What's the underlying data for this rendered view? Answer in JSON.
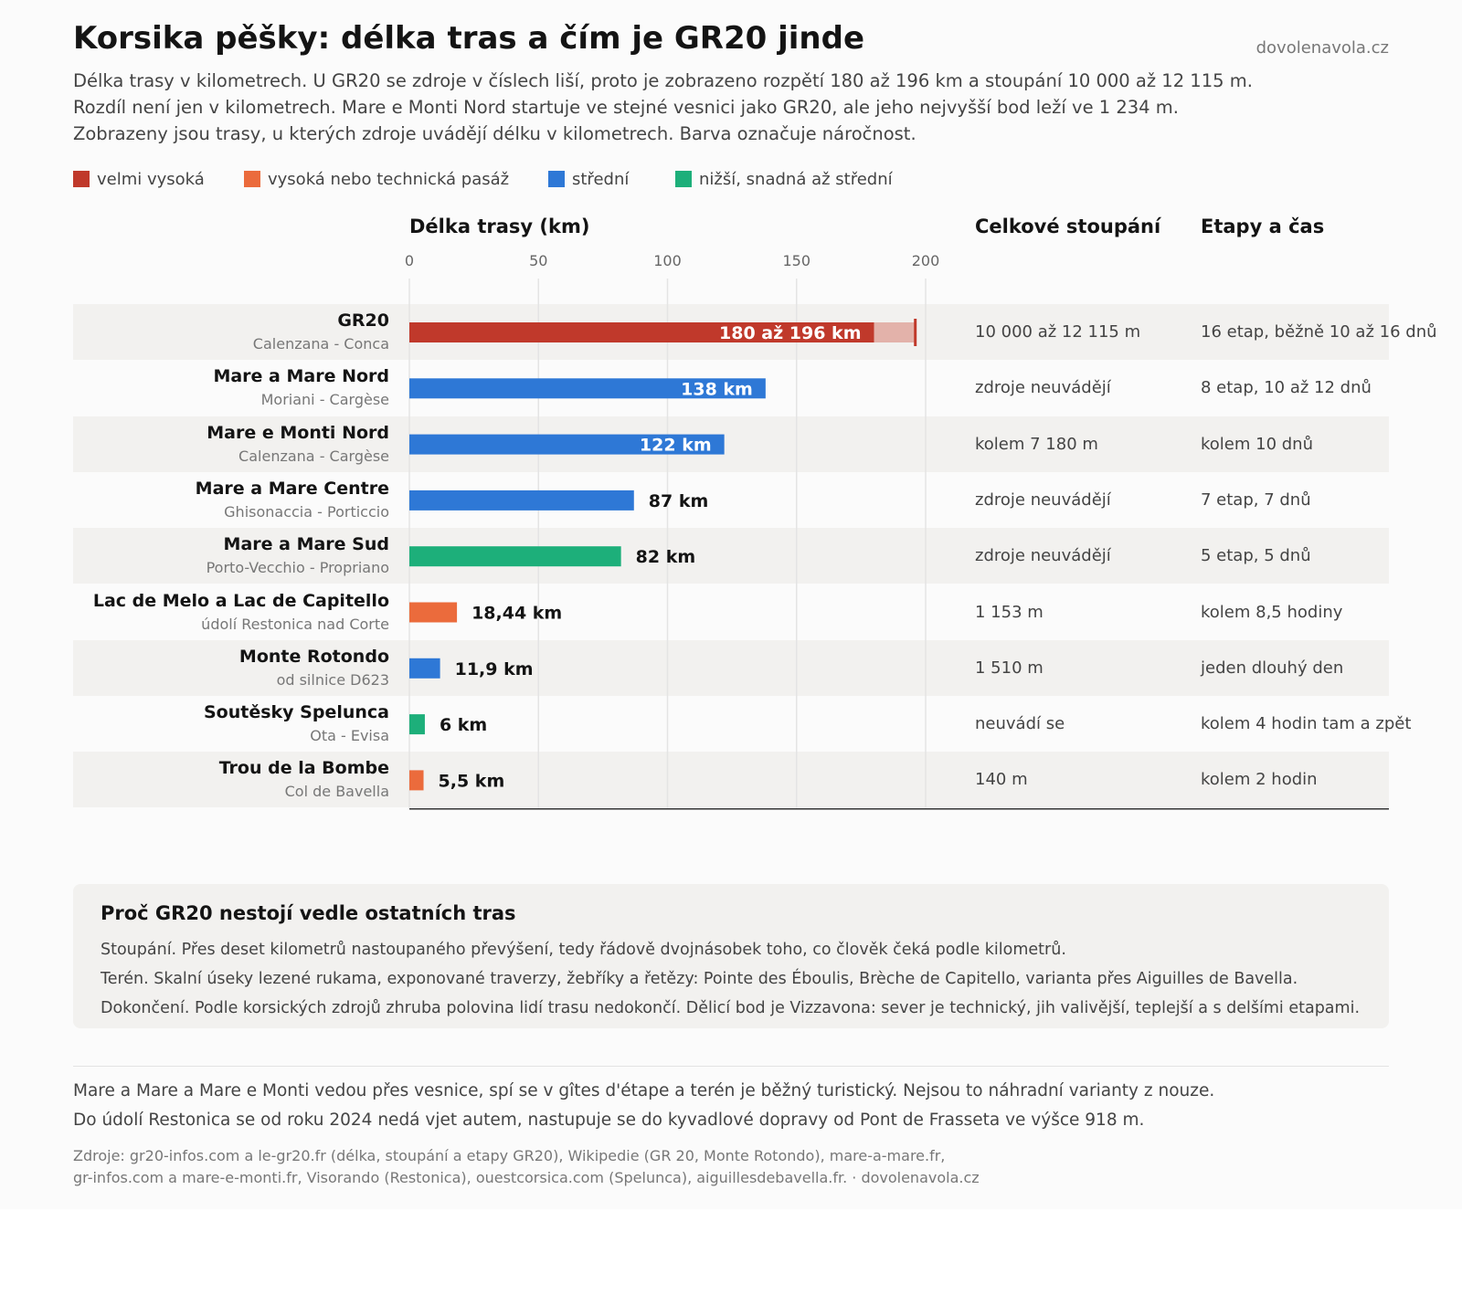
{
  "header": {
    "title": "Korsika pěšky: délka tras a čím je GR20 jinde",
    "site": "dovolenavola.cz",
    "subtitle_lines": [
      "Délka trasy v kilometrech. U GR20 se zdroje v číslech liší, proto je zobrazeno rozpětí 180 až 196 km a stoupání 10 000 až 12 115 m.",
      "Rozdíl není jen v kilometrech. Mare e Monti Nord startuje ve stejné vesnici jako GR20, ale jeho nejvyšší bod leží ve 1 234 m.",
      "Zobrazeny jsou trasy, u kterých zdroje uvádějí délku v kilometrech. Barva označuje náročnost."
    ]
  },
  "legend": [
    {
      "label": "velmi vysoká",
      "color": "#c0392b"
    },
    {
      "label": "vysoká nebo technická pasáž",
      "color": "#eb6b3c"
    },
    {
      "label": "střední",
      "color": "#2e78d6"
    },
    {
      "label": "nižší, snadná až střední",
      "color": "#1daf7a"
    }
  ],
  "columns": {
    "length": "Délka trasy (km)",
    "climb": "Celkové stoupání",
    "stages": "Etapy a čas"
  },
  "chart_data": {
    "type": "bar",
    "orientation": "horizontal",
    "xlabel": "Délka trasy (km)",
    "xlim": [
      0,
      200
    ],
    "ticks": [
      0,
      50,
      100,
      150,
      200
    ],
    "tick_labels": [
      "0",
      "50",
      "100",
      "150",
      "200"
    ],
    "grid": true,
    "rows": [
      {
        "name": "GR20",
        "route": "Calenzana - Conca",
        "value": 180,
        "value_max": 196,
        "label": "180 až 196 km",
        "difficulty": "velmi vysoká",
        "color": "#c0392b",
        "range_color": "#e3b2aa",
        "label_inside": true,
        "climb": "10 000 až 12 115 m",
        "stages": "16 etap, běžně 10 až 16 dnů"
      },
      {
        "name": "Mare a Mare Nord",
        "route": "Moriani - Cargèse",
        "value": 138,
        "label": "138 km",
        "difficulty": "střední",
        "color": "#2e78d6",
        "label_inside": true,
        "climb": "zdroje neuvádějí",
        "stages": "8 etap, 10 až 12 dnů"
      },
      {
        "name": "Mare e Monti Nord",
        "route": "Calenzana - Cargèse",
        "value": 122,
        "label": "122 km",
        "difficulty": "střední",
        "color": "#2e78d6",
        "label_inside": true,
        "climb": "kolem 7 180 m",
        "stages": "kolem 10 dnů"
      },
      {
        "name": "Mare a Mare Centre",
        "route": "Ghisonaccia - Porticcio",
        "value": 87,
        "label": "87 km",
        "difficulty": "střední",
        "color": "#2e78d6",
        "label_inside": false,
        "climb": "zdroje neuvádějí",
        "stages": "7 etap, 7 dnů"
      },
      {
        "name": "Mare a Mare Sud",
        "route": "Porto-Vecchio - Propriano",
        "value": 82,
        "label": "82 km",
        "difficulty": "nižší, snadná až střední",
        "color": "#1daf7a",
        "label_inside": false,
        "climb": "zdroje neuvádějí",
        "stages": "5 etap, 5 dnů"
      },
      {
        "name": "Lac de Melo a Lac de Capitello",
        "route": "údolí Restonica nad Corte",
        "value": 18.44,
        "label": "18,44 km",
        "difficulty": "vysoká nebo technická pasáž",
        "color": "#eb6b3c",
        "label_inside": false,
        "climb": "1 153 m",
        "stages": "kolem 8,5 hodiny"
      },
      {
        "name": "Monte Rotondo",
        "route": "od silnice D623",
        "value": 11.9,
        "label": "11,9 km",
        "difficulty": "střední",
        "color": "#2e78d6",
        "label_inside": false,
        "climb": "1 510 m",
        "stages": "jeden dlouhý den"
      },
      {
        "name": "Soutěsky Spelunca",
        "route": "Ota - Evisa",
        "value": 6,
        "label": "6 km",
        "difficulty": "nižší, snadná až střední",
        "color": "#1daf7a",
        "label_inside": false,
        "climb": "neuvádí se",
        "stages": "kolem 4 hodin tam a zpět"
      },
      {
        "name": "Trou de la Bombe",
        "route": "Col de Bavella",
        "value": 5.5,
        "label": "5,5 km",
        "difficulty": "vysoká nebo technická pasáž",
        "color": "#eb6b3c",
        "label_inside": false,
        "climb": "140 m",
        "stages": "kolem 2 hodin"
      }
    ]
  },
  "box": {
    "title": "Proč GR20 nestojí vedle ostatních tras",
    "lines": [
      "Stoupání. Přes deset kilometrů nastoupaného převýšení, tedy řádově dvojnásobek toho, co člověk čeká podle kilometrů.",
      "Terén. Skalní úseky lezené rukama, exponované traverzy, žebříky a řetězy: Pointe des Éboulis, Brèche de Capitello, varianta přes Aiguilles de Bavella.",
      "Dokončení. Podle korsických zdrojů zhruba polovina lidí trasu nedokončí. Dělicí bod je Vizzavona: sever je technický, jih valivější, teplejší a s delšími etapami."
    ]
  },
  "notes": [
    "Mare a Mare a Mare e Monti vedou přes vesnice, spí se v gîtes d'étape a terén je běžný turistický. Nejsou to náhradní varianty z nouze.",
    "Do údolí Restonica se od roku 2024 nedá vjet autem, nastupuje se do kyvadlové dopravy od Pont de Frasseta ve výšce 918 m."
  ],
  "sources": [
    "Zdroje: gr20-infos.com a le-gr20.fr (délka, stoupání a etapy GR20), Wikipedie (GR 20, Monte Rotondo), mare-a-mare.fr,",
    "gr-infos.com a mare-e-monti.fr, Visorando (Restonica), ouestcorsica.com (Spelunca), aiguillesdebavella.fr. · dovolenavola.cz"
  ]
}
